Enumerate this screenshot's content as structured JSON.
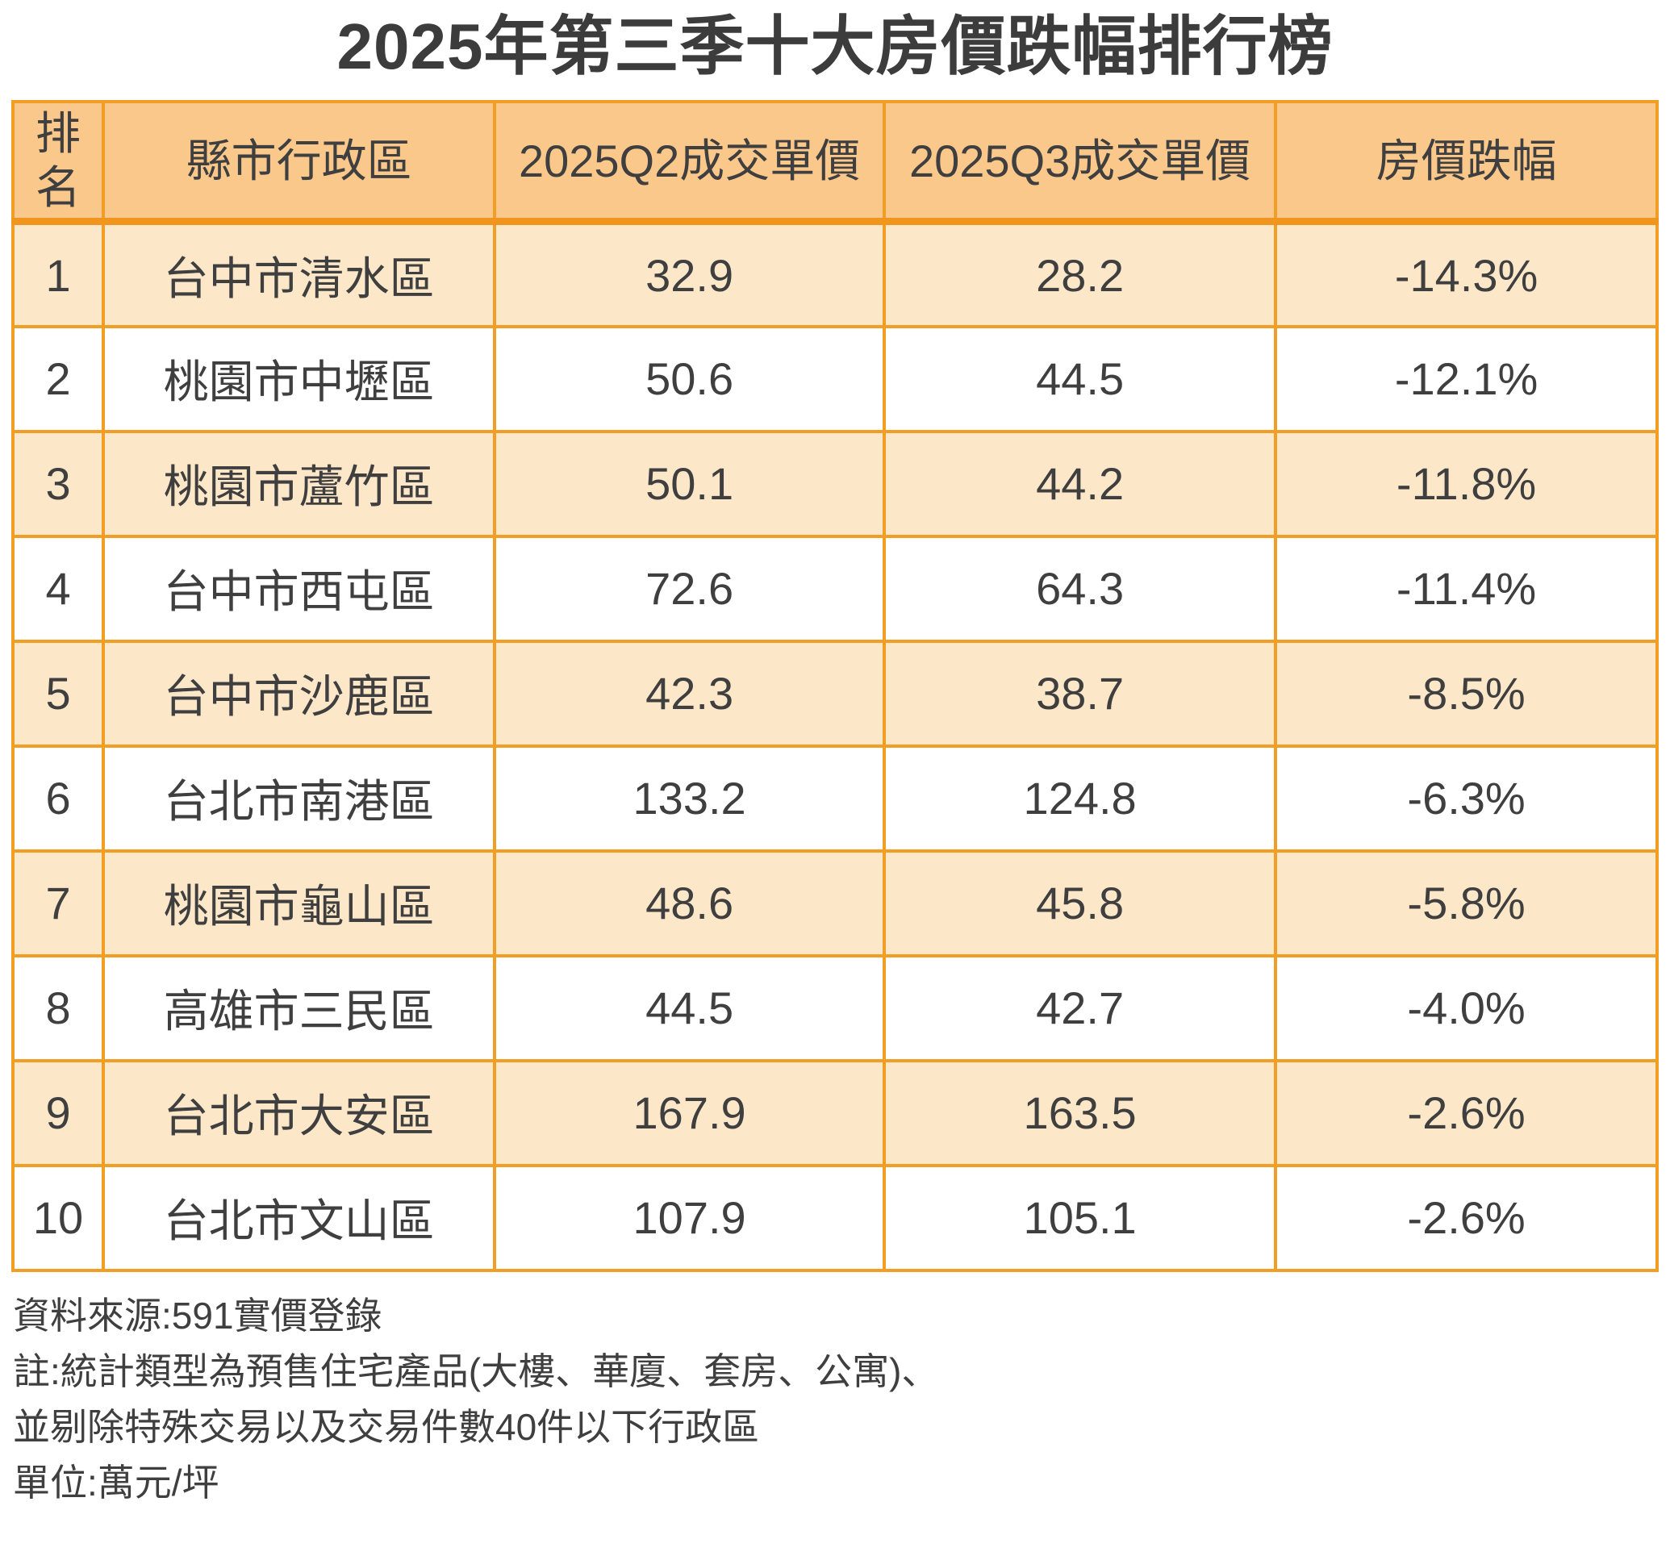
{
  "title": "2025年第三季十大房價跌幅排行榜",
  "colors": {
    "header_bg": "#FBC88C",
    "row_alt_bg": "#FDE7C9",
    "row_bg": "#FFFFFF",
    "border": "#F29D24",
    "border_strong": "#F0961E",
    "text": "#3F3F3F",
    "title_color": "#3C3C3C"
  },
  "table": {
    "header": {
      "rank": "排名",
      "district": "縣市行政區",
      "q2": "2025Q2成交單價",
      "q3": "2025Q3成交單價",
      "drop": "房價跌幅"
    }
  },
  "chart_data": {
    "type": "table",
    "title": "2025年第三季十大房價跌幅排行榜",
    "columns": [
      "排名",
      "縣市行政區",
      "2025Q2成交單價",
      "2025Q3成交單價",
      "房價跌幅"
    ],
    "unit": "萬元/坪",
    "rows": [
      {
        "rank": "1",
        "district": "台中市清水區",
        "q2": "32.9",
        "q3": "28.2",
        "drop": "-14.3%"
      },
      {
        "rank": "2",
        "district": "桃園市中壢區",
        "q2": "50.6",
        "q3": "44.5",
        "drop": "-12.1%"
      },
      {
        "rank": "3",
        "district": "桃園市蘆竹區",
        "q2": "50.1",
        "q3": "44.2",
        "drop": "-11.8%"
      },
      {
        "rank": "4",
        "district": "台中市西屯區",
        "q2": "72.6",
        "q3": "64.3",
        "drop": "-11.4%"
      },
      {
        "rank": "5",
        "district": "台中市沙鹿區",
        "q2": "42.3",
        "q3": "38.7",
        "drop": "-8.5%"
      },
      {
        "rank": "6",
        "district": "台北市南港區",
        "q2": "133.2",
        "q3": "124.8",
        "drop": "-6.3%"
      },
      {
        "rank": "7",
        "district": "桃園市龜山區",
        "q2": "48.6",
        "q3": "45.8",
        "drop": "-5.8%"
      },
      {
        "rank": "8",
        "district": "高雄市三民區",
        "q2": "44.5",
        "q3": "42.7",
        "drop": "-4.0%"
      },
      {
        "rank": "9",
        "district": "台北市大安區",
        "q2": "167.9",
        "q3": "163.5",
        "drop": "-2.6%"
      },
      {
        "rank": "10",
        "district": "台北市文山區",
        "q2": "107.9",
        "q3": "105.1",
        "drop": "-2.6%"
      }
    ]
  },
  "footer": {
    "lines": [
      "資料來源:591實價登錄",
      "註:統計類型為預售住宅產品(大樓、華廈、套房、公寓)、",
      "並剔除特殊交易以及交易件數40件以下行政區",
      "單位:萬元/坪"
    ]
  }
}
